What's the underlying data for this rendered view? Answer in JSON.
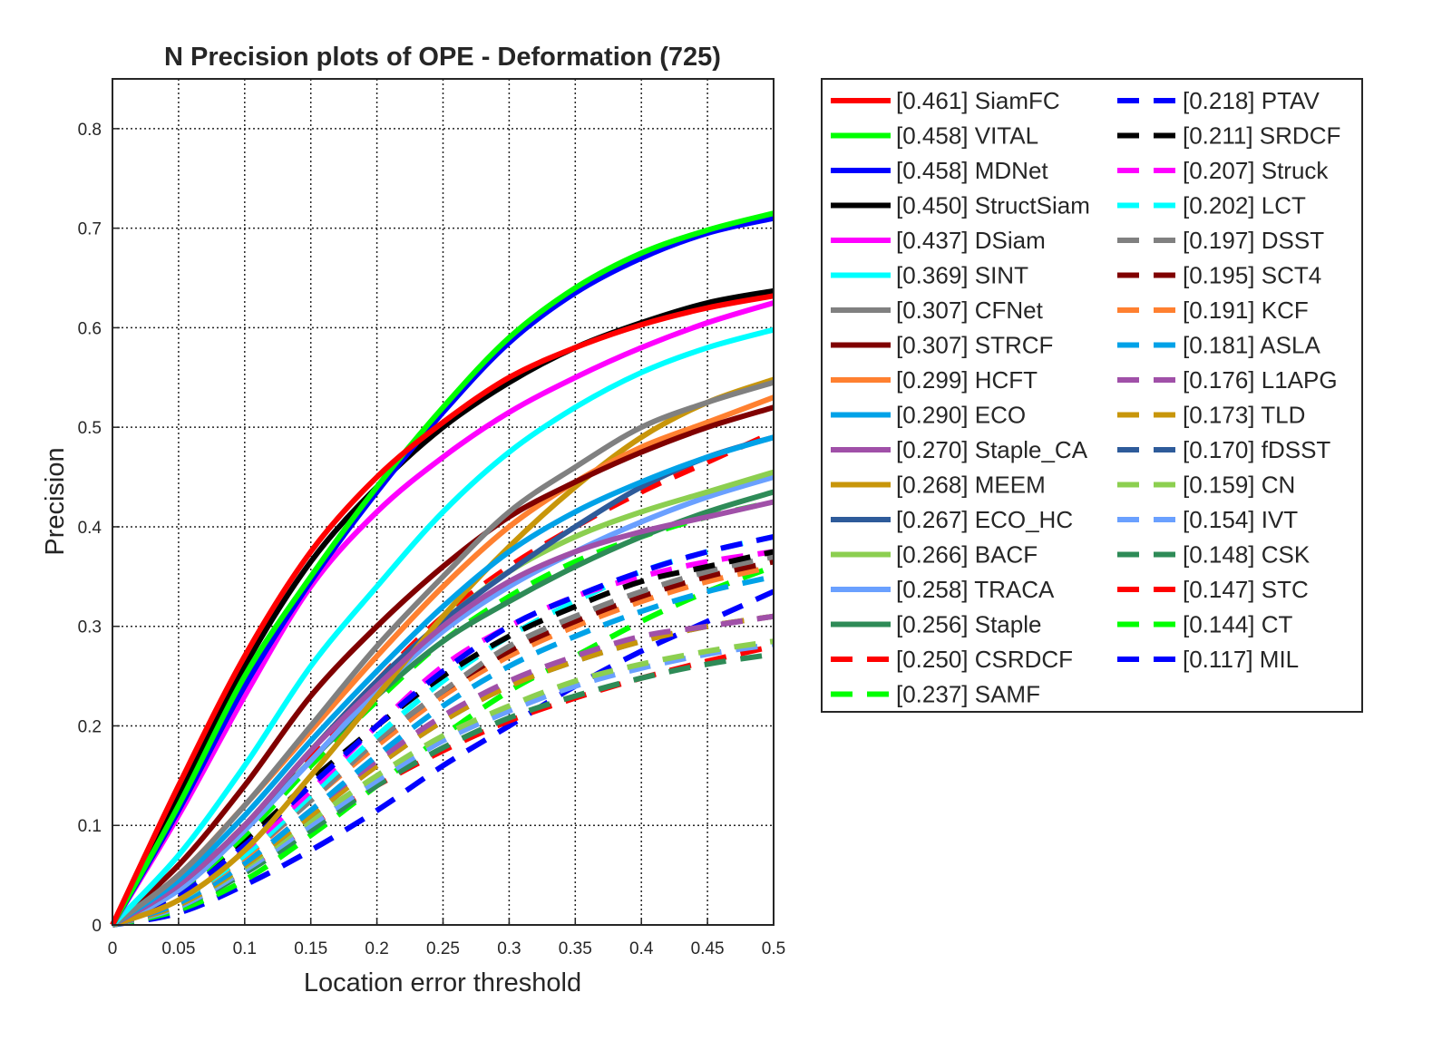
{
  "chart_data": {
    "type": "line",
    "title": "N Precision plots of OPE - Deformation (725)",
    "xlabel": "Location error threshold",
    "ylabel": "Precision",
    "xlim": [
      0,
      0.5
    ],
    "ylim": [
      0,
      0.85
    ],
    "xticks": [
      "0",
      "0.05",
      "0.1",
      "0.15",
      "0.2",
      "0.25",
      "0.3",
      "0.35",
      "0.4",
      "0.45",
      "0.5"
    ],
    "yticks": [
      "0",
      "0.1",
      "0.2",
      "0.3",
      "0.4",
      "0.5",
      "0.6",
      "0.7",
      "0.8"
    ],
    "grid": true,
    "legend_position": "outside-right",
    "x": [
      0,
      0.05,
      0.1,
      0.15,
      0.2,
      0.25,
      0.3,
      0.35,
      0.4,
      0.45,
      0.5
    ],
    "series": [
      {
        "name": "[0.461] SiamFC",
        "color": "#ff0000",
        "style": "solid",
        "values": [
          0,
          0.14,
          0.27,
          0.375,
          0.45,
          0.505,
          0.55,
          0.58,
          0.603,
          0.62,
          0.632
        ]
      },
      {
        "name": "[0.458] VITAL",
        "color": "#00ff00",
        "style": "solid",
        "values": [
          0,
          0.12,
          0.25,
          0.35,
          0.44,
          0.52,
          0.59,
          0.64,
          0.675,
          0.698,
          0.715
        ]
      },
      {
        "name": "[0.458] MDNet",
        "color": "#0000ff",
        "style": "solid",
        "values": [
          0,
          0.115,
          0.24,
          0.345,
          0.435,
          0.515,
          0.585,
          0.635,
          0.67,
          0.695,
          0.71
        ]
      },
      {
        "name": "[0.450] StructSiam",
        "color": "#000000",
        "style": "solid",
        "values": [
          0,
          0.13,
          0.26,
          0.365,
          0.44,
          0.5,
          0.545,
          0.58,
          0.605,
          0.625,
          0.637
        ]
      },
      {
        "name": "[0.437] DSiam",
        "color": "#ff00ff",
        "style": "solid",
        "values": [
          0,
          0.11,
          0.23,
          0.34,
          0.415,
          0.47,
          0.515,
          0.55,
          0.58,
          0.605,
          0.625
        ]
      },
      {
        "name": "[0.369] SINT",
        "color": "#00ffff",
        "style": "solid",
        "values": [
          0,
          0.07,
          0.16,
          0.26,
          0.34,
          0.415,
          0.475,
          0.52,
          0.555,
          0.58,
          0.598
        ]
      },
      {
        "name": "[0.307] CFNet",
        "color": "#808080",
        "style": "solid",
        "values": [
          0,
          0.05,
          0.12,
          0.2,
          0.28,
          0.35,
          0.415,
          0.46,
          0.5,
          0.525,
          0.545
        ]
      },
      {
        "name": "[0.307] STRCF",
        "color": "#800000",
        "style": "solid",
        "values": [
          0,
          0.06,
          0.14,
          0.23,
          0.3,
          0.36,
          0.41,
          0.445,
          0.475,
          0.5,
          0.52
        ]
      },
      {
        "name": "[0.299] HCFT",
        "color": "#ff8030",
        "style": "solid",
        "values": [
          0,
          0.05,
          0.12,
          0.195,
          0.27,
          0.34,
          0.4,
          0.445,
          0.48,
          0.505,
          0.53
        ]
      },
      {
        "name": "[0.290] ECO",
        "color": "#00a2e8",
        "style": "solid",
        "values": [
          0,
          0.045,
          0.11,
          0.185,
          0.255,
          0.32,
          0.375,
          0.415,
          0.445,
          0.47,
          0.49
        ]
      },
      {
        "name": "[0.270] Staple_CA",
        "color": "#a050a8",
        "style": "solid",
        "values": [
          0,
          0.04,
          0.1,
          0.175,
          0.24,
          0.3,
          0.345,
          0.375,
          0.395,
          0.41,
          0.425
        ]
      },
      {
        "name": "[0.268] MEEM",
        "color": "#c8960a",
        "style": "solid",
        "values": [
          0,
          0.025,
          0.075,
          0.15,
          0.23,
          0.31,
          0.38,
          0.44,
          0.49,
          0.525,
          0.548
        ]
      },
      {
        "name": "[0.267] ECO_HC",
        "color": "#2e5b9a",
        "style": "solid",
        "values": [
          0,
          0.04,
          0.1,
          0.175,
          0.245,
          0.305,
          0.355,
          0.4,
          0.44,
          0.47,
          0.49
        ]
      },
      {
        "name": "[0.266] BACF",
        "color": "#8ccf50",
        "style": "solid",
        "values": [
          0,
          0.04,
          0.1,
          0.175,
          0.245,
          0.305,
          0.355,
          0.39,
          0.415,
          0.435,
          0.455
        ]
      },
      {
        "name": "[0.258] TRACA",
        "color": "#6aa0ff",
        "style": "solid",
        "values": [
          0,
          0.035,
          0.095,
          0.165,
          0.235,
          0.295,
          0.34,
          0.375,
          0.405,
          0.43,
          0.45
        ]
      },
      {
        "name": "[0.256] Staple",
        "color": "#2e8b57",
        "style": "solid",
        "values": [
          0,
          0.035,
          0.095,
          0.165,
          0.23,
          0.285,
          0.325,
          0.36,
          0.39,
          0.415,
          0.435
        ]
      },
      {
        "name": "[0.250] CSRDCF",
        "color": "#ff0000",
        "style": "dashed",
        "values": [
          0,
          0.04,
          0.1,
          0.17,
          0.245,
          0.31,
          0.36,
          0.4,
          0.435,
          0.465,
          0.495
        ]
      },
      {
        "name": "[0.237] SAMF",
        "color": "#00ff00",
        "style": "dashed",
        "values": [
          0,
          0.035,
          0.09,
          0.16,
          0.225,
          0.285,
          0.33,
          0.365,
          0.39,
          0.41,
          0.425
        ]
      },
      {
        "name": "[0.218] PTAV",
        "color": "#0000ff",
        "style": "dashed",
        "values": [
          0,
          0.03,
          0.08,
          0.14,
          0.2,
          0.255,
          0.3,
          0.33,
          0.355,
          0.375,
          0.39
        ]
      },
      {
        "name": "[0.211] SRDCF",
        "color": "#000000",
        "style": "dashed",
        "values": [
          0,
          0.035,
          0.085,
          0.145,
          0.2,
          0.25,
          0.29,
          0.32,
          0.345,
          0.36,
          0.375
        ]
      },
      {
        "name": "[0.207] Struck",
        "color": "#ff00ff",
        "style": "dashed",
        "values": [
          0,
          0.025,
          0.075,
          0.135,
          0.2,
          0.26,
          0.3,
          0.33,
          0.35,
          0.365,
          0.375
        ]
      },
      {
        "name": "[0.202] LCT",
        "color": "#00ffff",
        "style": "dashed",
        "values": [
          0,
          0.025,
          0.07,
          0.13,
          0.19,
          0.245,
          0.29,
          0.325,
          0.355,
          0.375,
          0.39
        ]
      },
      {
        "name": "[0.197] DSST",
        "color": "#808080",
        "style": "dashed",
        "values": [
          0,
          0.025,
          0.07,
          0.125,
          0.185,
          0.235,
          0.28,
          0.31,
          0.335,
          0.355,
          0.37
        ]
      },
      {
        "name": "[0.195] SCT4",
        "color": "#800000",
        "style": "dashed",
        "values": [
          0,
          0.025,
          0.07,
          0.13,
          0.185,
          0.235,
          0.275,
          0.305,
          0.33,
          0.35,
          0.365
        ]
      },
      {
        "name": "[0.191] KCF",
        "color": "#ff8030",
        "style": "dashed",
        "values": [
          0,
          0.025,
          0.068,
          0.125,
          0.18,
          0.23,
          0.27,
          0.3,
          0.325,
          0.345,
          0.36
        ]
      },
      {
        "name": "[0.181] ASLA",
        "color": "#00a2e8",
        "style": "dashed",
        "values": [
          0,
          0.022,
          0.062,
          0.115,
          0.17,
          0.22,
          0.26,
          0.29,
          0.315,
          0.335,
          0.35
        ]
      },
      {
        "name": "[0.176] L1APG",
        "color": "#a050a8",
        "style": "dashed",
        "values": [
          0,
          0.022,
          0.062,
          0.115,
          0.165,
          0.21,
          0.245,
          0.27,
          0.29,
          0.3,
          0.31
        ]
      },
      {
        "name": "[0.173] TLD",
        "color": "#c8960a",
        "style": "dashed",
        "values": [
          0,
          0.02,
          0.06,
          0.11,
          0.16,
          0.205,
          0.24,
          0.265,
          0.285,
          0.3,
          0.31
        ]
      },
      {
        "name": "[0.170] fDSST",
        "color": "#2e5b9a",
        "style": "dashed",
        "values": [
          0,
          0.02,
          0.06,
          0.11,
          0.16,
          0.205,
          0.24,
          0.265,
          0.285,
          0.3,
          0.31
        ]
      },
      {
        "name": "[0.159] CN",
        "color": "#8ccf50",
        "style": "dashed",
        "values": [
          0,
          0.02,
          0.058,
          0.105,
          0.15,
          0.19,
          0.22,
          0.245,
          0.262,
          0.275,
          0.285
        ]
      },
      {
        "name": "[0.154] IVT",
        "color": "#6aa0ff",
        "style": "dashed",
        "values": [
          0,
          0.018,
          0.055,
          0.1,
          0.145,
          0.185,
          0.215,
          0.24,
          0.258,
          0.272,
          0.282
        ]
      },
      {
        "name": "[0.148] CSK",
        "color": "#2e8b57",
        "style": "dashed",
        "values": [
          0,
          0.018,
          0.052,
          0.095,
          0.14,
          0.178,
          0.208,
          0.23,
          0.248,
          0.262,
          0.272
        ]
      },
      {
        "name": "[0.147] STC",
        "color": "#ff0000",
        "style": "dashed",
        "values": [
          0,
          0.02,
          0.055,
          0.1,
          0.14,
          0.175,
          0.205,
          0.228,
          0.248,
          0.265,
          0.28
        ]
      },
      {
        "name": "[0.144] CT",
        "color": "#00ff00",
        "style": "dashed",
        "values": [
          0,
          0.015,
          0.045,
          0.09,
          0.14,
          0.19,
          0.235,
          0.27,
          0.305,
          0.335,
          0.36
        ]
      },
      {
        "name": "[0.117] MIL",
        "color": "#0000ff",
        "style": "dashed",
        "values": [
          0,
          0.012,
          0.04,
          0.075,
          0.115,
          0.16,
          0.2,
          0.24,
          0.275,
          0.305,
          0.335
        ]
      }
    ]
  }
}
